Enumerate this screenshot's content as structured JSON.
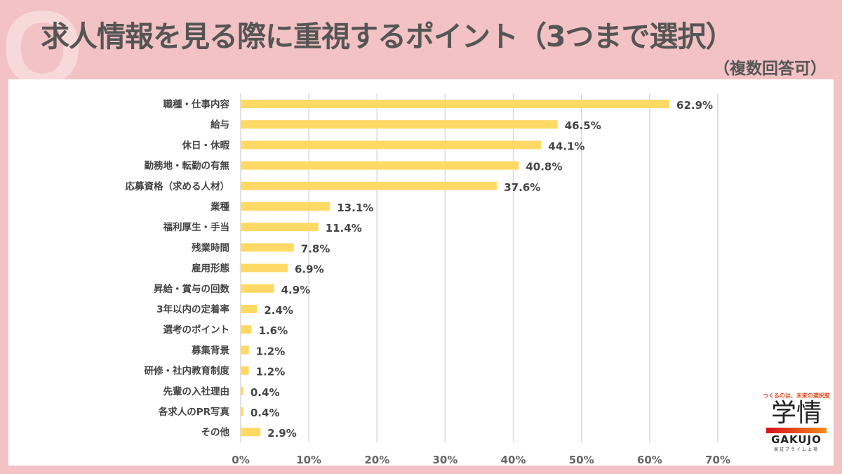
{
  "header": {
    "q_mark": "Q",
    "title": "求人情報を見る際に重視するポイント（3つまで選択）",
    "subtitle": "（複数回答可）"
  },
  "logo": {
    "tagline": "つくるのは、未来の選択肢",
    "name": "学情",
    "name_en": "GAKUJO",
    "exchange": "東証プライム上場"
  },
  "chart_data": {
    "type": "bar",
    "orientation": "horizontal",
    "categories": [
      "職種・仕事内容",
      "給与",
      "休日・休暇",
      "勤務地・転勤の有無",
      "応募資格（求める人材）",
      "業種",
      "福利厚生・手当",
      "残業時間",
      "雇用形態",
      "昇給・賞与の回数",
      "3年以内の定着率",
      "選考のポイント",
      "募集背景",
      "研修・社内教育制度",
      "先輩の入社理由",
      "各求人のPR写真",
      "その他"
    ],
    "values": [
      62.9,
      46.5,
      44.1,
      40.8,
      37.6,
      13.1,
      11.4,
      7.8,
      6.9,
      4.9,
      2.4,
      1.6,
      1.2,
      1.2,
      0.4,
      0.4,
      2.9
    ],
    "value_labels": [
      "62.9%",
      "46.5%",
      "44.1%",
      "40.8%",
      "37.6%",
      "13.1%",
      "11.4%",
      "7.8%",
      "6.9%",
      "4.9%",
      "2.4%",
      "1.6%",
      "1.2%",
      "1.2%",
      "0.4%",
      "0.4%",
      "2.9%"
    ],
    "xlim": [
      0,
      70
    ],
    "ticks": [
      "0%",
      "10%",
      "20%",
      "30%",
      "40%",
      "50%",
      "60%",
      "70%"
    ],
    "grid": true,
    "bar_color": "#ffd966"
  }
}
